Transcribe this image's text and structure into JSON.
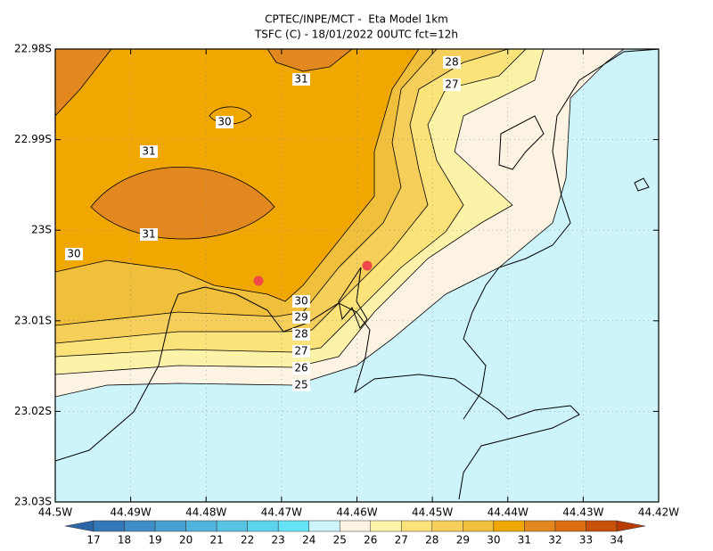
{
  "chart_data": {
    "type": "contour",
    "title": "CPTEC/INPE/MCT -  Eta Model 1km",
    "subtitle": "TSFC (C) - 18/01/2022 00UTC fct=12h",
    "xlim": [
      -44.5,
      -44.42
    ],
    "xticks": [
      {
        "value": -44.5,
        "label": "44.5W"
      },
      {
        "value": -44.49,
        "label": "44.49W"
      },
      {
        "value": -44.48,
        "label": "44.48W"
      },
      {
        "value": -44.47,
        "label": "44.47W"
      },
      {
        "value": -44.46,
        "label": "44.46W"
      },
      {
        "value": -44.45,
        "label": "44.45W"
      },
      {
        "value": -44.44,
        "label": "44.44W"
      },
      {
        "value": -44.43,
        "label": "44.43W"
      },
      {
        "value": -44.42,
        "label": "44.42W"
      }
    ],
    "ylim": [
      -23.03,
      -22.98
    ],
    "yticks": [
      {
        "value": -22.98,
        "label": "22.98S"
      },
      {
        "value": -22.99,
        "label": "22.99S"
      },
      {
        "value": -23,
        "label": "23S"
      },
      {
        "value": -23.01,
        "label": "23.01S"
      },
      {
        "value": -23.02,
        "label": "23.02S"
      },
      {
        "value": -23.03,
        "label": "23.03S"
      }
    ],
    "grid": true,
    "colorbar": {
      "levels": [
        17,
        18,
        19,
        20,
        21,
        22,
        23,
        24,
        25,
        26,
        27,
        28,
        29,
        30,
        31,
        32,
        33,
        34
      ],
      "colors": [
        "#2b65a8",
        "#3478b8",
        "#3f8cc6",
        "#49a0d2",
        "#52b4dc",
        "#58c4e4",
        "#5cd4ec",
        "#64e4f6",
        "#cdf3fb",
        "#fdf3e3",
        "#fdf3a8",
        "#fbe37a",
        "#f5cf5a",
        "#f0bf3c",
        "#f0a800",
        "#e2881e",
        "#da6e10",
        "#c85008",
        "#b83c00"
      ]
    },
    "contour_labels": [
      28,
      27,
      31,
      30,
      31,
      31,
      30,
      30,
      29,
      28,
      27,
      26,
      25
    ]
  }
}
